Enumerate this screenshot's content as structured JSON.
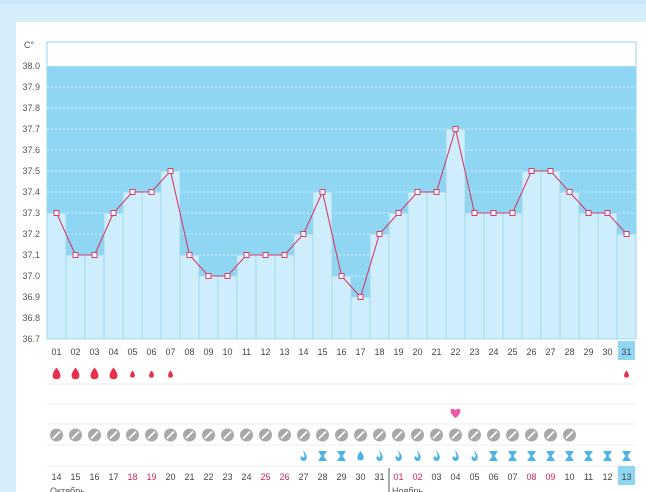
{
  "chart_data": {
    "type": "bar",
    "ylabel": "C°",
    "ylim": [
      36.7,
      38.0
    ],
    "yticks": [
      "38.0",
      "37.9",
      "37.8",
      "37.7",
      "37.6",
      "37.5",
      "37.4",
      "37.3",
      "37.2",
      "37.1",
      "37.0",
      "36.9",
      "36.8",
      "36.7"
    ],
    "cycle_days": [
      "01",
      "02",
      "03",
      "04",
      "05",
      "06",
      "07",
      "08",
      "09",
      "10",
      "11",
      "12",
      "13",
      "14",
      "15",
      "16",
      "17",
      "18",
      "19",
      "20",
      "21",
      "22",
      "23",
      "24",
      "25",
      "26",
      "27",
      "28",
      "29",
      "30",
      "31"
    ],
    "values": [
      37.3,
      37.1,
      37.1,
      37.3,
      37.4,
      37.4,
      37.5,
      37.1,
      37.0,
      37.0,
      37.1,
      37.1,
      37.1,
      37.2,
      37.4,
      37.0,
      36.9,
      37.2,
      37.3,
      37.4,
      37.4,
      37.7,
      37.3,
      37.3,
      37.3,
      37.5,
      37.5,
      37.4,
      37.3,
      37.3,
      37.2
    ],
    "dates": [
      "14",
      "15",
      "16",
      "17",
      "18",
      "19",
      "20",
      "21",
      "22",
      "23",
      "24",
      "25",
      "26",
      "27",
      "28",
      "29",
      "30",
      "31",
      "01",
      "02",
      "03",
      "04",
      "05",
      "06",
      "07",
      "08",
      "09",
      "10",
      "11",
      "12",
      "13"
    ],
    "weekend_indices": [
      4,
      5,
      11,
      12,
      18,
      19,
      25,
      26
    ],
    "month_labels": [
      {
        "label": "Октябрь",
        "start_index": 0
      },
      {
        "label": "Ноябрь",
        "start_index": 18
      }
    ],
    "highlight_index": 30,
    "markers": {
      "drop_large": [
        0,
        1,
        2,
        3
      ],
      "drop_small": [
        4,
        5,
        6,
        30
      ],
      "heart": [
        21
      ],
      "pill": [
        0,
        1,
        2,
        3,
        4,
        5,
        6,
        7,
        8,
        9,
        10,
        11,
        12,
        13,
        14,
        15,
        16,
        17,
        18,
        19,
        20,
        21,
        22,
        23,
        24,
        25,
        26,
        27
      ],
      "discharge": {
        "drop_curl": [
          13,
          17,
          18,
          19,
          20,
          21,
          22
        ],
        "hourglass": [
          14,
          15,
          23,
          24,
          25,
          26,
          27,
          28,
          29,
          30
        ],
        "drop_full": [
          16
        ]
      }
    },
    "colors": {
      "bar_fill": "#cfeefb",
      "bar_border": "#9ad6f0",
      "plot_band": "#8fd6f3",
      "line": "#d63c6f",
      "weekend_text": "#d6245f",
      "highlight_bg": "#8fd6f3",
      "drop": "#e8304a",
      "heart": "#ee5aa5",
      "pill": "#a9a9a9",
      "discharge": "#4db3e6"
    }
  }
}
